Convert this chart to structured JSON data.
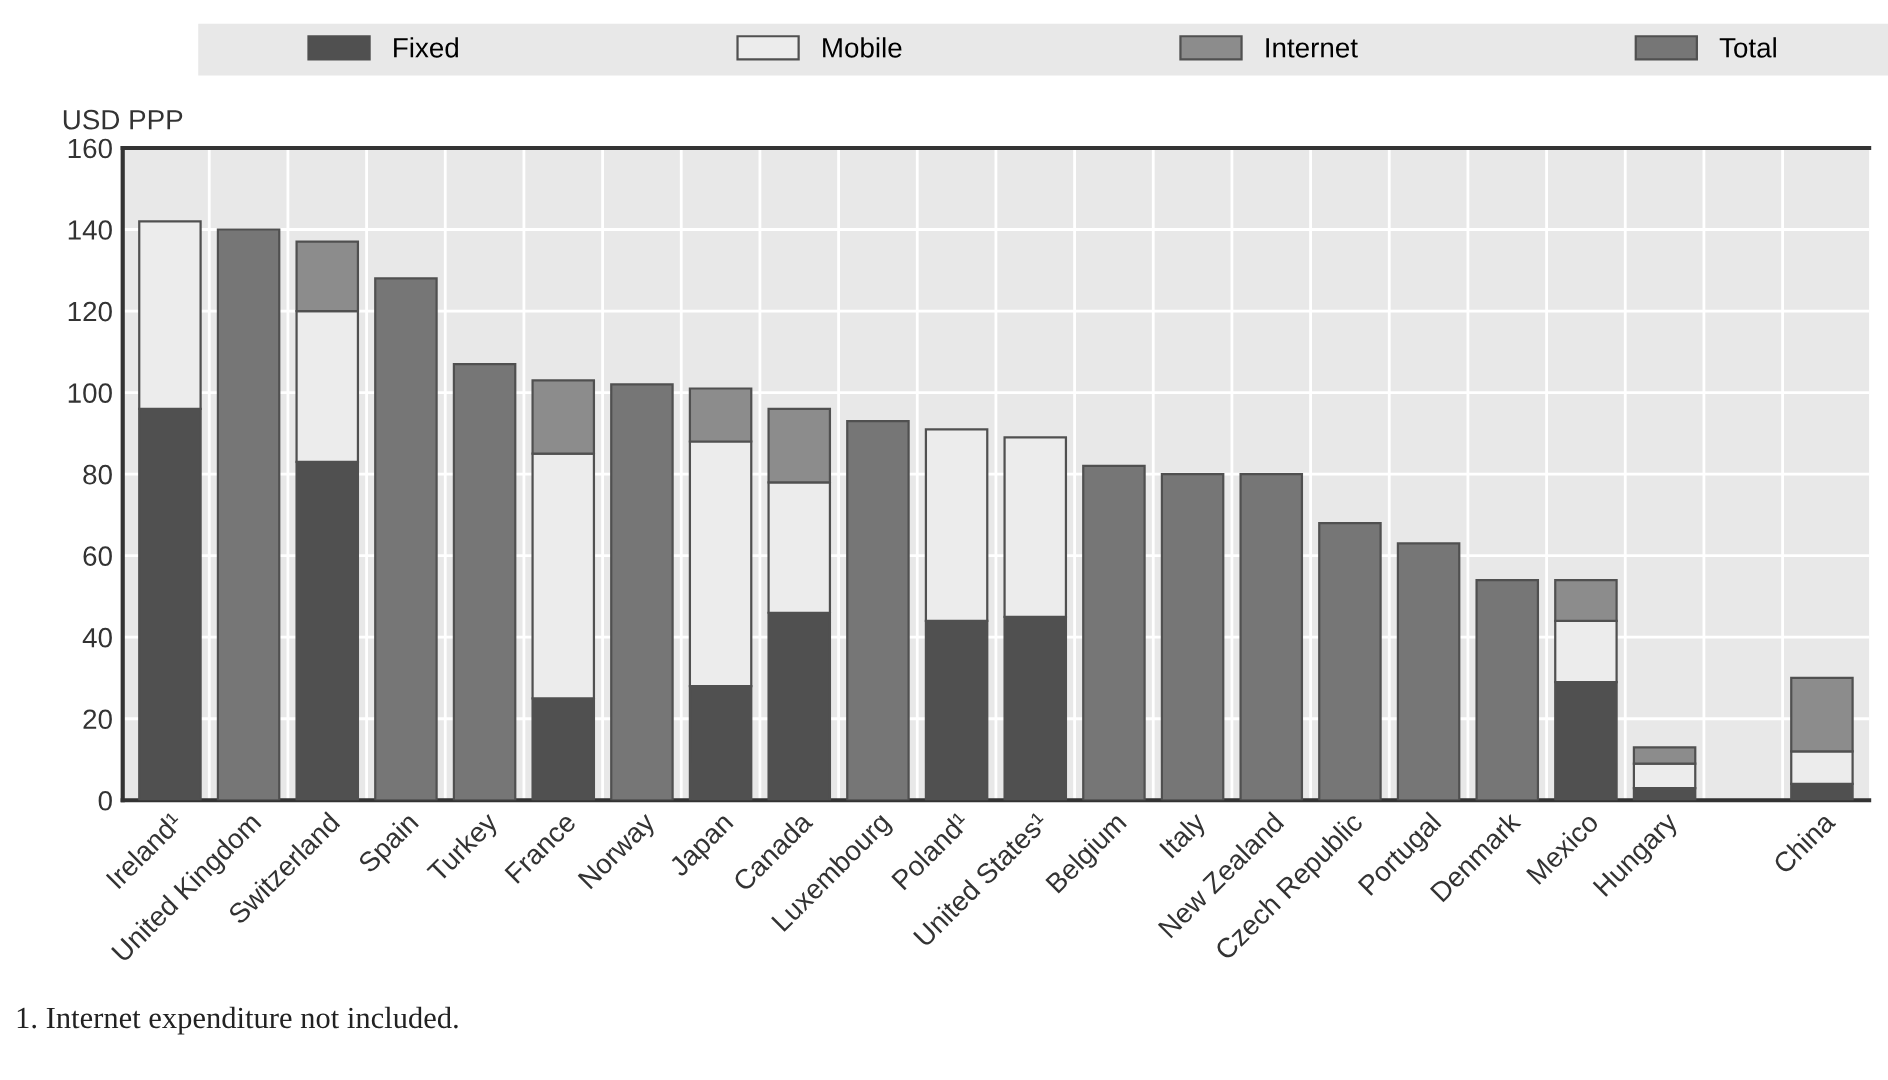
{
  "chart_data": {
    "type": "bar",
    "stacked": true,
    "ylabel": "USD PPP",
    "categories": [
      "Ireland¹",
      "United Kingdom",
      "Switzerland",
      "Spain",
      "Turkey",
      "France",
      "Norway",
      "Japan",
      "Canada",
      "Luxembourg",
      "Poland¹",
      "United States¹",
      "Belgium",
      "Italy",
      "New Zealand",
      "Czech Republic",
      "Portugal",
      "Denmark",
      "Mexico",
      "Hungary",
      null,
      "China"
    ],
    "series": [
      {
        "name": "Fixed",
        "color": "#505050",
        "values": [
          96,
          null,
          83,
          null,
          null,
          25,
          null,
          28,
          46,
          null,
          44,
          45,
          null,
          null,
          null,
          null,
          null,
          null,
          29,
          3,
          null,
          4
        ]
      },
      {
        "name": "Mobile",
        "color": "#ececec",
        "values": [
          46,
          null,
          37,
          null,
          null,
          60,
          null,
          60,
          32,
          null,
          47,
          44,
          null,
          null,
          null,
          null,
          null,
          null,
          15,
          6,
          null,
          8
        ]
      },
      {
        "name": "Internet",
        "color": "#8c8c8c",
        "values": [
          null,
          null,
          17,
          null,
          null,
          18,
          null,
          13,
          18,
          null,
          null,
          null,
          null,
          null,
          null,
          null,
          null,
          null,
          10,
          4,
          null,
          18
        ]
      },
      {
        "name": "Total",
        "color": "#767676",
        "values": [
          null,
          140,
          null,
          128,
          107,
          null,
          102,
          null,
          null,
          93,
          null,
          null,
          82,
          80,
          80,
          68,
          63,
          54,
          null,
          null,
          null,
          null
        ]
      }
    ],
    "ylim": [
      0,
      160
    ],
    "yticks": [
      0,
      20,
      40,
      60,
      80,
      100,
      120,
      140,
      160
    ],
    "grid": true,
    "legend": "top",
    "annotations": [
      "1. Internet expenditure not included."
    ]
  }
}
